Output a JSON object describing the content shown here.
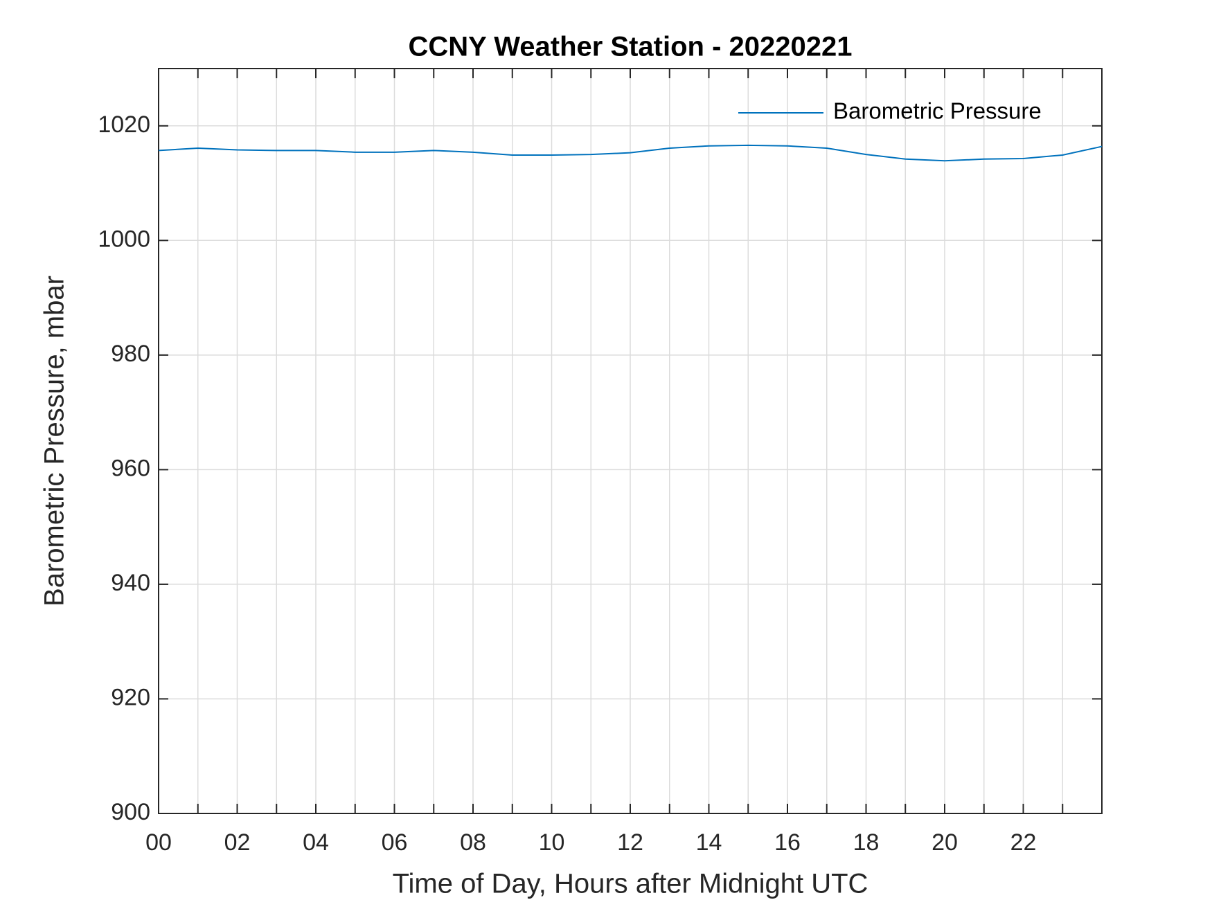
{
  "chart_data": {
    "type": "line",
    "title": "CCNY Weather Station - 20220221",
    "x_label": "Time of Day, Hours after Midnight UTC",
    "y_label": "Barometric Pressure, mbar",
    "x": [
      0,
      1,
      2,
      3,
      4,
      5,
      6,
      7,
      8,
      9,
      10,
      11,
      12,
      13,
      14,
      15,
      16,
      17,
      18,
      19,
      20,
      21,
      22,
      23,
      24
    ],
    "series": [
      {
        "name": "Barometric Pressure",
        "color": "#0072bd",
        "values": [
          1015.7,
          1016.1,
          1015.8,
          1015.7,
          1015.7,
          1015.4,
          1015.4,
          1015.7,
          1015.4,
          1014.9,
          1014.9,
          1015.0,
          1015.3,
          1016.1,
          1016.5,
          1016.6,
          1016.5,
          1016.1,
          1015.0,
          1014.2,
          1013.9,
          1014.2,
          1014.3,
          1014.9,
          1016.4
        ]
      }
    ],
    "xlim": [
      0,
      24
    ],
    "xticks": [
      {
        "value": 0,
        "label": "00"
      },
      {
        "value": 2,
        "label": "02"
      },
      {
        "value": 4,
        "label": "04"
      },
      {
        "value": 6,
        "label": "06"
      },
      {
        "value": 8,
        "label": "08"
      },
      {
        "value": 10,
        "label": "10"
      },
      {
        "value": 12,
        "label": "12"
      },
      {
        "value": 14,
        "label": "14"
      },
      {
        "value": 16,
        "label": "16"
      },
      {
        "value": 18,
        "label": "18"
      },
      {
        "value": 20,
        "label": "20"
      },
      {
        "value": 22,
        "label": "22"
      }
    ],
    "xminor_ticks": [
      1,
      3,
      5,
      7,
      9,
      11,
      13,
      15,
      17,
      19,
      21,
      23
    ],
    "ylim": [
      900,
      1030
    ],
    "yticks": [
      900,
      920,
      940,
      960,
      980,
      1000,
      1020
    ],
    "grid": true,
    "legend": "upper right"
  }
}
